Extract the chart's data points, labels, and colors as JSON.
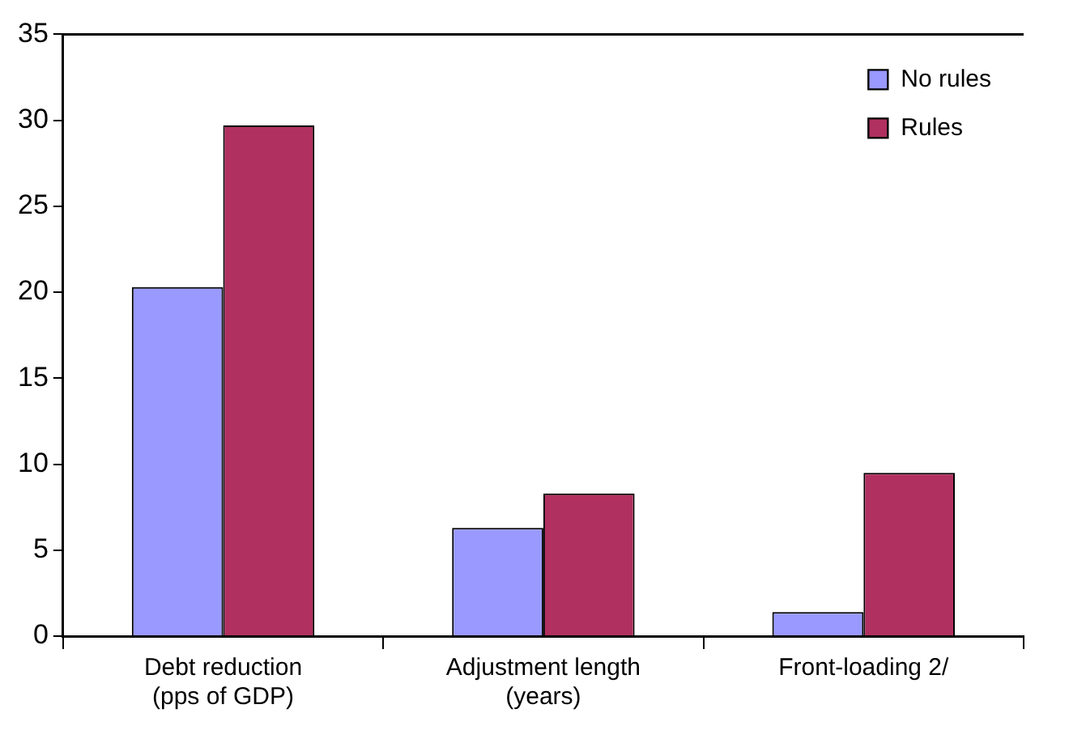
{
  "chart_data": {
    "type": "bar",
    "categories": [
      "Debt reduction\n(pps of GDP)",
      "Adjustment length\n(years)",
      "Front-loading 2/"
    ],
    "series": [
      {
        "name": "No rules",
        "color": "#9999ff",
        "values": [
          20.3,
          6.3,
          1.4
        ]
      },
      {
        "name": "Rules",
        "color": "#b03060",
        "values": [
          29.7,
          8.3,
          9.5
        ]
      }
    ],
    "ylim": [
      0,
      35
    ],
    "yticks": [
      0,
      5,
      10,
      15,
      20,
      25,
      30,
      35
    ],
    "grid": false,
    "legend": "top right"
  }
}
